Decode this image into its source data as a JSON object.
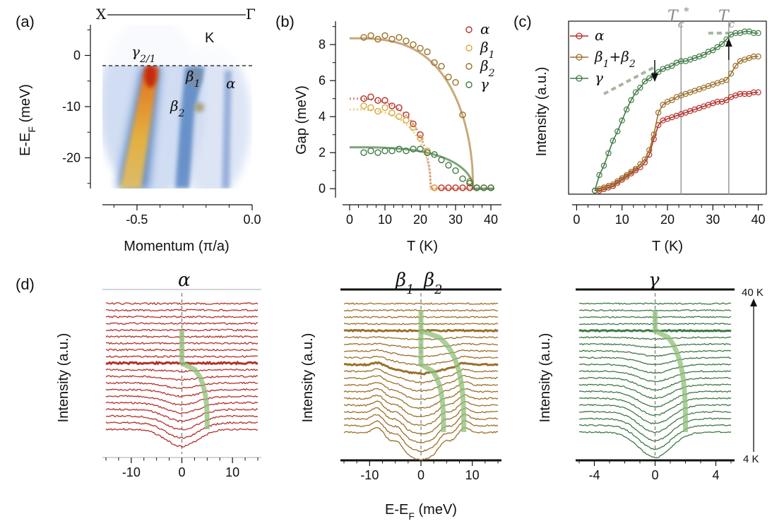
{
  "panels": {
    "a": {
      "label": "(a)",
      "top_left": "X",
      "top_right": "Γ",
      "corner": "K",
      "ylabel": "E-E",
      "ylabel_sub": "F",
      "ylabel_unit": " (meV)",
      "xlabel": "Momentum (π/a)",
      "band_gamma": "γ",
      "band_gamma_sub": "2/1",
      "band_beta1": "β",
      "band_beta1_sub": "1",
      "band_beta2": "β",
      "band_beta2_sub": "2",
      "band_alpha": "α"
    },
    "b": {
      "label": "(b)",
      "ylabel": "Gap (meV)",
      "xlabel": "T (K)"
    },
    "c": {
      "label": "(c)",
      "ylabel": "Intensity (a.u.)",
      "xlabel": "T (K)",
      "tc_star": "T",
      "tc_star_sub": "c",
      "tc_star_sup": "*",
      "tc": "T",
      "tc_sub": "c"
    },
    "d": {
      "label": "(d)",
      "ylabel": "Intensity (a.u.)",
      "xlabel_main": "E-E",
      "xlabel_sub": "F",
      "xlabel_unit": " (meV)",
      "title_alpha": "α",
      "title_beta1": "β",
      "title_beta1_sub": "1",
      "title_beta2": "β",
      "title_beta2_sub": "2",
      "title_gamma": "γ",
      "temp_top": "40 K",
      "temp_bottom": "4 K"
    }
  },
  "colors": {
    "alpha": "#b5302a",
    "beta1": "#d8a93a",
    "beta2": "#9a7028",
    "beta": "#9a7028",
    "gamma": "#3f7a43",
    "fit_tan": "#c2a06c",
    "fit_green": "#6e9b6c",
    "highlight_green": "#8fbf7a",
    "grey_line": "#9a9a9a"
  },
  "chart_data": [
    {
      "type": "heatmap",
      "panel": "a",
      "xlabel": "Momentum (π/a)",
      "ylabel": "E-EF (meV)",
      "xlim": [
        -0.65,
        0.0
      ],
      "ylim": [
        -26,
        6
      ],
      "xticks": [
        -0.5,
        0.0
      ],
      "xtick_labels": [
        "-0.5",
        "0.0"
      ],
      "yticks": [
        0,
        -10,
        -20
      ],
      "ytick_labels": [
        "0",
        "-10",
        "-20"
      ],
      "fermi_level": 0,
      "bands": [
        {
          "name": "γ2/1",
          "k_at_EF": -0.43,
          "k_at_bottom": -0.56
        },
        {
          "name": "β1",
          "k_at_EF": -0.21,
          "k_at_bottom": -0.29
        },
        {
          "name": "β2",
          "k_at_EF": -0.2,
          "k_at_bottom": -0.29
        },
        {
          "name": "α",
          "k_at_EF": -0.09,
          "k_at_bottom": -0.1
        }
      ]
    },
    {
      "type": "scatter",
      "panel": "b",
      "xlabel": "T (K)",
      "ylabel": "Gap (meV)",
      "xlim": [
        -2,
        43
      ],
      "ylim": [
        -0.5,
        9.3
      ],
      "xticks": [
        0,
        10,
        20,
        30,
        40
      ],
      "yticks": [
        0,
        2,
        4,
        6,
        8
      ],
      "legend": [
        "α",
        "β1",
        "β2",
        "γ"
      ],
      "legend_position": "top-right",
      "series": [
        {
          "name": "α",
          "x": [
            4,
            6,
            8,
            10,
            12,
            14,
            16,
            18,
            20,
            22,
            24,
            26,
            28,
            30,
            32,
            34,
            36,
            38,
            40
          ],
          "y": [
            5.0,
            5.1,
            4.9,
            4.9,
            4.6,
            4.5,
            4.1,
            3.6,
            3.0,
            2.0,
            0.05,
            0.05,
            0.05,
            0.05,
            0.05,
            0.05,
            0.05,
            0.05,
            0.05
          ]
        },
        {
          "name": "β1",
          "x": [
            4,
            6,
            8,
            10,
            12,
            14,
            16,
            18,
            20,
            22,
            24
          ],
          "y": [
            4.6,
            4.5,
            4.3,
            4.5,
            4.2,
            4.0,
            3.8,
            3.4,
            2.8,
            2.1,
            0.05
          ]
        },
        {
          "name": "β2",
          "x": [
            4,
            6,
            8,
            10,
            12,
            14,
            16,
            18,
            20,
            22,
            24,
            26,
            28,
            30,
            32,
            34,
            36
          ],
          "y": [
            8.4,
            8.5,
            8.3,
            8.5,
            8.3,
            8.4,
            8.2,
            8.0,
            7.8,
            7.6,
            7.0,
            6.8,
            6.2,
            5.9,
            4.1,
            0.4,
            0.05
          ]
        },
        {
          "name": "γ",
          "x": [
            4,
            6,
            8,
            10,
            12,
            14,
            16,
            18,
            20,
            22,
            24,
            26,
            28,
            30,
            32,
            34,
            36,
            38,
            40
          ],
          "y": [
            2.0,
            2.1,
            2.0,
            2.1,
            2.1,
            2.2,
            2.1,
            2.2,
            2.2,
            2.0,
            1.9,
            1.6,
            1.3,
            1.0,
            0.55,
            0.3,
            0.05,
            0.05,
            0.05
          ]
        }
      ],
      "fits": [
        {
          "series": "α",
          "Tc": 23,
          "gap0": 5.0,
          "style": "dotted"
        },
        {
          "series": "β1",
          "Tc": 23,
          "gap0": 4.4,
          "style": "dotted"
        },
        {
          "series": "β2",
          "Tc": 35,
          "gap0": 8.35,
          "style": "solid"
        },
        {
          "series": "γ",
          "Tc": 35,
          "gap0": 2.3,
          "style": "solid"
        }
      ]
    },
    {
      "type": "line",
      "panel": "c",
      "xlabel": "T (K)",
      "ylabel": "Intensity (a.u.)",
      "xlim": [
        -1,
        41
      ],
      "xticks": [
        0,
        10,
        20,
        30,
        40
      ],
      "legend": [
        "α",
        "β1+β2",
        "γ"
      ],
      "legend_position": "top-left",
      "vlines": [
        {
          "label": "Tc*",
          "x": 23
        },
        {
          "label": "Tc",
          "x": 33.5
        }
      ],
      "series": [
        {
          "name": "α",
          "x": [
            4,
            5,
            6,
            7,
            8,
            9,
            10,
            11,
            12,
            13,
            14,
            15,
            16,
            17,
            18,
            19,
            20,
            21,
            22,
            23,
            24,
            25,
            26,
            27,
            28,
            29,
            30,
            31,
            32,
            33,
            34,
            35,
            36,
            37,
            38,
            39,
            40
          ],
          "y": [
            0.0,
            0.0,
            0.01,
            0.02,
            0.03,
            0.05,
            0.07,
            0.09,
            0.11,
            0.13,
            0.15,
            0.18,
            0.23,
            0.33,
            0.42,
            0.45,
            0.46,
            0.47,
            0.48,
            0.49,
            0.5,
            0.51,
            0.52,
            0.53,
            0.54,
            0.55,
            0.56,
            0.57,
            0.57,
            0.58,
            0.6,
            0.61,
            0.62,
            0.62,
            0.62,
            0.63,
            0.63
          ]
        },
        {
          "name": "β1+β2",
          "x": [
            4,
            5,
            6,
            7,
            8,
            9,
            10,
            11,
            12,
            13,
            14,
            15,
            16,
            17,
            18,
            19,
            20,
            21,
            22,
            23,
            24,
            25,
            26,
            27,
            28,
            29,
            30,
            31,
            32,
            33,
            34,
            35,
            36,
            37,
            38,
            39,
            40
          ],
          "y": [
            0.0,
            0.01,
            0.02,
            0.03,
            0.04,
            0.06,
            0.08,
            0.1,
            0.12,
            0.14,
            0.17,
            0.2,
            0.26,
            0.36,
            0.5,
            0.55,
            0.57,
            0.58,
            0.6,
            0.61,
            0.62,
            0.63,
            0.64,
            0.65,
            0.66,
            0.67,
            0.68,
            0.69,
            0.7,
            0.71,
            0.75,
            0.8,
            0.83,
            0.84,
            0.85,
            0.86,
            0.86
          ]
        },
        {
          "name": "γ",
          "x": [
            4,
            5,
            6,
            7,
            8,
            9,
            10,
            11,
            12,
            13,
            14,
            15,
            16,
            17,
            18,
            19,
            20,
            21,
            22,
            23,
            24,
            25,
            26,
            27,
            28,
            29,
            30,
            31,
            32,
            33,
            34,
            35,
            36,
            37,
            38,
            39,
            40
          ],
          "y": [
            0.0,
            0.1,
            0.16,
            0.24,
            0.32,
            0.38,
            0.45,
            0.52,
            0.58,
            0.63,
            0.66,
            0.7,
            0.72,
            0.74,
            0.76,
            0.78,
            0.79,
            0.8,
            0.82,
            0.83,
            0.83,
            0.84,
            0.85,
            0.86,
            0.87,
            0.89,
            0.9,
            0.92,
            0.94,
            0.97,
            1.0,
            1.01,
            1.01,
            1.02,
            1.02,
            1.01,
            1.01
          ]
        }
      ]
    },
    {
      "type": "line",
      "panel": "d",
      "subpanels": [
        {
          "title": "α",
          "xlim": [
            -15,
            15
          ],
          "xticks": [
            -10,
            0,
            10
          ],
          "curves": 20,
          "gap0": 5.0,
          "Tc_index": 10
        },
        {
          "title": "β1 β2",
          "xlim": [
            -15,
            15
          ],
          "xticks": [
            -10,
            0,
            10
          ],
          "curves": 20,
          "gaps": [
            4.4,
            8.35
          ],
          "highlight_indices": [
            10,
            15
          ]
        },
        {
          "title": "γ",
          "xlim": [
            -5,
            5
          ],
          "xticks": [
            -4,
            0,
            4
          ],
          "curves": 20,
          "gap0": 2.0,
          "Tc_index": 15
        }
      ],
      "temperature_range": [
        "4 K",
        "40 K"
      ]
    }
  ]
}
